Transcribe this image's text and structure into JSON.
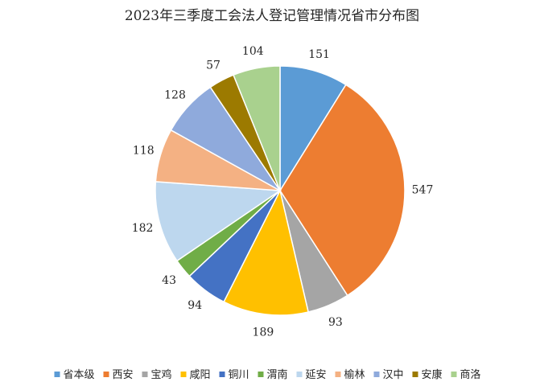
{
  "chart_data": {
    "type": "pie",
    "title": "2023年三季度工会法人登记管理情况省市分布图",
    "categories": [
      "省本级",
      "西安",
      "宝鸡",
      "咸阳",
      "铜川",
      "渭南",
      "延安",
      "榆林",
      "汉中",
      "安康",
      "商洛"
    ],
    "values": [
      151,
      547,
      93,
      189,
      94,
      43,
      182,
      118,
      128,
      57,
      104
    ],
    "colors": [
      "#5B9BD5",
      "#ED7D31",
      "#A5A5A5",
      "#FFC000",
      "#4472C4",
      "#70AD47",
      "#BDD7EE",
      "#F4B183",
      "#8FAADC",
      "#9C7A00",
      "#A9D18E"
    ],
    "legend_position": "bottom",
    "start_angle_deg": 0,
    "direction": "clockwise"
  }
}
